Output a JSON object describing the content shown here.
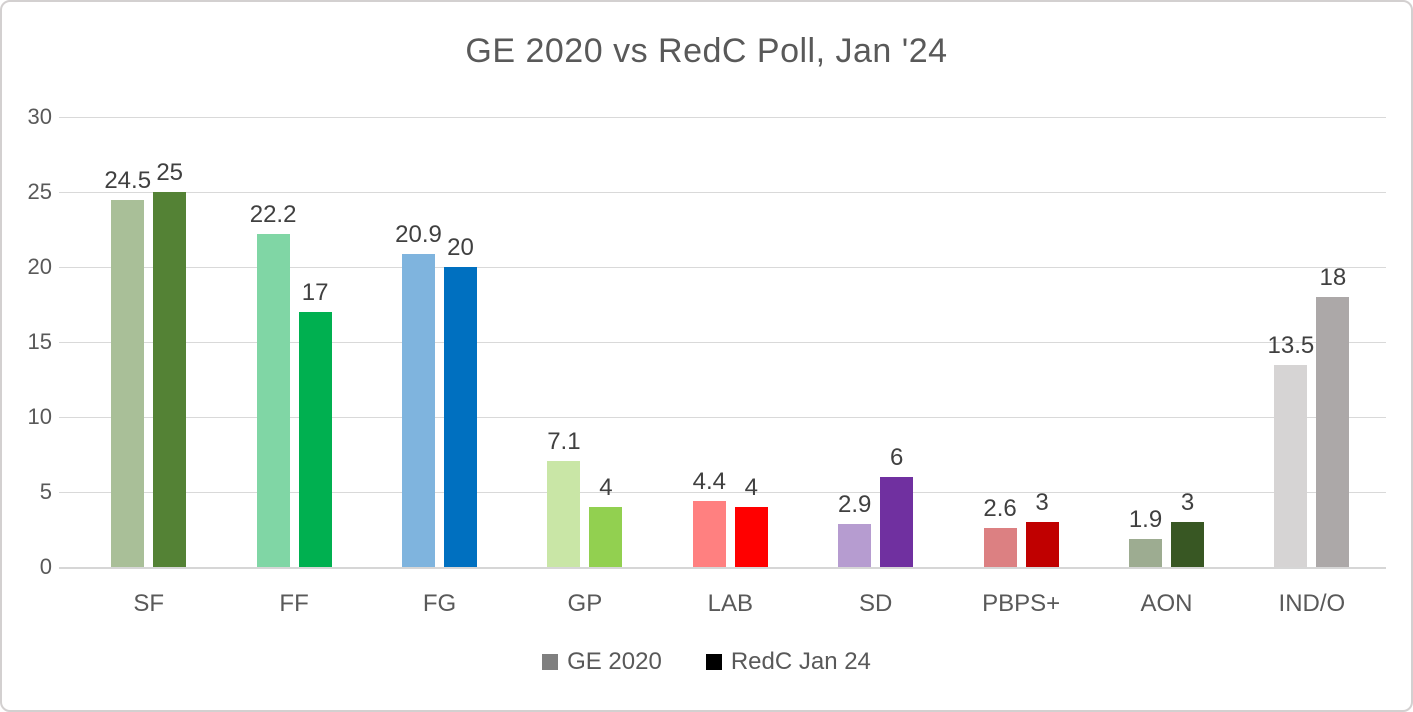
{
  "title": "GE 2020 vs RedC Poll, Jan '24",
  "y_axis": {
    "tick_labels": [
      "0",
      "5",
      "10",
      "15",
      "20",
      "25",
      "30"
    ],
    "min": 0,
    "max": 30
  },
  "legend": {
    "items": [
      {
        "label": "GE 2020",
        "marker_color": "#7f7f7f"
      },
      {
        "label": "RedC Jan 24",
        "marker_color": "#000000"
      }
    ]
  },
  "chart_data": {
    "type": "bar",
    "title": "GE 2020 vs RedC Poll, Jan '24",
    "categories": [
      "SF",
      "FF",
      "FG",
      "GP",
      "LAB",
      "SD",
      "PBPS+",
      "AON",
      "IND/O"
    ],
    "series": [
      {
        "name": "GE 2020",
        "values": [
          24.5,
          22.2,
          20.9,
          7.1,
          4.4,
          2.9,
          2.6,
          1.9,
          13.5
        ],
        "labels": [
          "24.5",
          "22.2",
          "20.9",
          "7.1",
          "4.4",
          "2.9",
          "2.6",
          "1.9",
          "13.5"
        ],
        "colors": [
          "#a9bf98",
          "#80d6a5",
          "#7fb4de",
          "#c9e6a6",
          "#ff8080",
          "#b69cd0",
          "#dc8082",
          "#9dac91",
          "#d6d4d4"
        ]
      },
      {
        "name": "RedC Jan 24",
        "values": [
          25,
          17,
          20,
          4,
          4,
          6,
          3,
          3,
          18
        ],
        "labels": [
          "25",
          "17",
          "20",
          "4",
          "4",
          "6",
          "3",
          "3",
          "18"
        ],
        "colors": [
          "#548235",
          "#00b050",
          "#0070c0",
          "#92d050",
          "#ff0000",
          "#7030a0",
          "#c00000",
          "#385723",
          "#aca8a8"
        ]
      }
    ],
    "xlabel": "",
    "ylabel": "",
    "ylim": [
      0,
      30
    ],
    "grid": true,
    "legend_position": "bottom",
    "value_labels_shown": true
  }
}
